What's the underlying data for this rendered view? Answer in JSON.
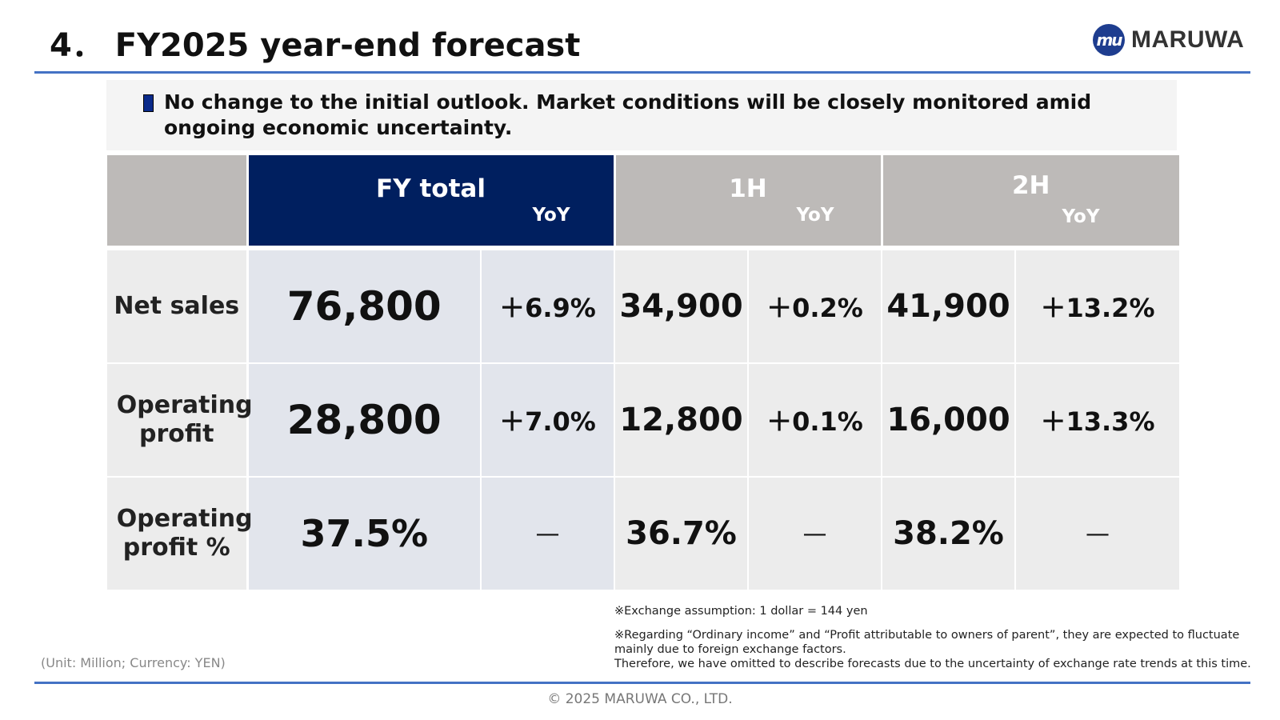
{
  "header": {
    "title": "4． FY2025 year-end forecast",
    "logo_mark": "mu",
    "logo_text": "MARUWA"
  },
  "message": "No change to the initial outlook. Market conditions will be closely monitored amid ongoing economic uncertainty.",
  "table": {
    "headers": {
      "fy_total": "FY total",
      "h1": "1H",
      "h2": "2H",
      "yoy": "YoY"
    },
    "rows": [
      {
        "label": "Net sales",
        "fy": "76,800",
        "fy_yoy": "＋6.9%",
        "h1": "34,900",
        "h1_yoy": "＋0.2%",
        "h2": "41,900",
        "h2_yoy": "＋13.2%"
      },
      {
        "label": "Operating profit",
        "fy": "28,800",
        "fy_yoy": "＋7.0%",
        "h1": "12,800",
        "h1_yoy": "＋0.1%",
        "h2": "16,000",
        "h2_yoy": "＋13.3%"
      },
      {
        "label": "Operating profit %",
        "fy": "37.5%",
        "fy_yoy": "—",
        "h1": "36.7%",
        "h1_yoy": "—",
        "h2": "38.2%",
        "h2_yoy": "—"
      }
    ]
  },
  "notes": {
    "exchange": "※Exchange assumption: 1 dollar = 144 yen",
    "regarding": "※Regarding “Ordinary income” and “Profit attributable to owners of parent”, they are expected to fluctuate mainly due to foreign exchange factors.",
    "therefore": "Therefore, we have omitted to describe forecasts due to the uncertainty of exchange rate trends at this time."
  },
  "unit": "(Unit: Million; Currency: YEN)",
  "footer": "© 2025 MARUWA CO., LTD.",
  "colors": {
    "accent_rule": "#4472c4",
    "fy_header": "#001f5f",
    "gray_header": "#bdbab8",
    "fy_cells": "#e2e5ec",
    "cells": "#ececec",
    "logo": "#1e3d8f"
  }
}
